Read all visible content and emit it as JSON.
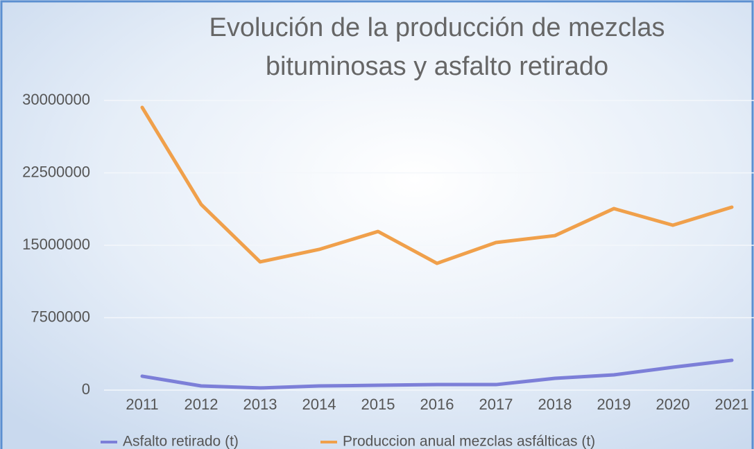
{
  "chart_data": {
    "type": "line",
    "title_lines": [
      "Evolución de la producción de mezclas",
      "bituminosas y asfalto retirado"
    ],
    "categories": [
      "2011",
      "2012",
      "2013",
      "2014",
      "2015",
      "2016",
      "2017",
      "2018",
      "2019",
      "2020",
      "2021"
    ],
    "series": [
      {
        "name": "Asfalto retirado (t)",
        "color": "#7c7fd8",
        "values": [
          1440000,
          430000,
          220000,
          430000,
          500000,
          570000,
          570000,
          1220000,
          1580000,
          2370000,
          3090000
        ]
      },
      {
        "name": "Produccion anual mezclas asfálticas (t)",
        "color": "#f0a04b",
        "values": [
          29280000,
          19230000,
          13280000,
          14570000,
          16430000,
          13130000,
          15290000,
          16000000,
          18800000,
          17080000,
          18950000
        ]
      }
    ],
    "ylim": [
      0,
      30000000
    ],
    "yticks": [
      0,
      7500000,
      15000000,
      22500000,
      30000000
    ],
    "grid": true,
    "legend": "bottom"
  }
}
